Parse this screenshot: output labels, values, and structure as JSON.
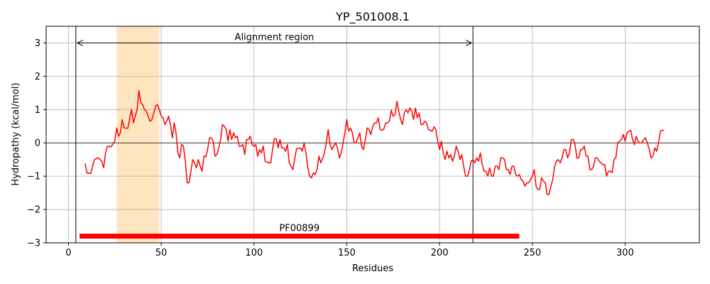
{
  "chart_data": {
    "type": "line",
    "title": "YP_501008.1",
    "xlabel": "Residues",
    "ylabel": "Hydropathy (kcal/mol)",
    "xlim": [
      -12,
      340
    ],
    "ylim": [
      -3,
      3.5
    ],
    "xticks": [
      0,
      50,
      100,
      150,
      200,
      250,
      300
    ],
    "yticks": [
      -3,
      -2,
      -1,
      0,
      1,
      2,
      3
    ],
    "grid": true,
    "series": [
      {
        "color": "#ff0000",
        "points": [
          [
            9,
            -0.62
          ],
          [
            10,
            -0.9
          ],
          [
            12,
            -0.92
          ],
          [
            14,
            -0.5
          ],
          [
            16,
            -0.45
          ],
          [
            18,
            -0.55
          ],
          [
            19,
            -0.75
          ],
          [
            20,
            -0.3
          ],
          [
            21,
            -0.1
          ],
          [
            23,
            -0.12
          ],
          [
            25,
            0.05
          ],
          [
            26,
            0.45
          ],
          [
            27,
            0.2
          ],
          [
            28,
            0.3
          ],
          [
            29,
            0.7
          ],
          [
            30,
            0.45
          ],
          [
            32,
            0.44
          ],
          [
            34,
            1.0
          ],
          [
            35,
            0.6
          ],
          [
            36,
            0.8
          ],
          [
            37,
            1.0
          ],
          [
            38,
            1.57
          ],
          [
            39,
            1.2
          ],
          [
            40,
            1.15
          ],
          [
            41,
            1.0
          ],
          [
            42,
            0.95
          ],
          [
            44,
            0.65
          ],
          [
            45,
            0.7
          ],
          [
            46,
            0.9
          ],
          [
            47,
            1.1
          ],
          [
            48,
            1.15
          ],
          [
            49,
            1.0
          ],
          [
            50,
            0.8
          ],
          [
            51,
            0.75
          ],
          [
            52,
            0.55
          ],
          [
            53,
            0.65
          ],
          [
            54,
            0.8
          ],
          [
            55,
            0.55
          ],
          [
            56,
            0.15
          ],
          [
            57,
            0.6
          ],
          [
            58,
            0.3
          ],
          [
            59,
            -0.3
          ],
          [
            60,
            -0.45
          ],
          [
            61,
            -0.05
          ],
          [
            62,
            -0.1
          ],
          [
            63,
            -0.55
          ],
          [
            64,
            -1.2
          ],
          [
            65,
            -1.2
          ],
          [
            67,
            -0.5
          ],
          [
            68,
            -0.6
          ],
          [
            69,
            -0.75
          ],
          [
            70,
            -0.5
          ],
          [
            71,
            -0.7
          ],
          [
            72,
            -0.85
          ],
          [
            73,
            -0.4
          ],
          [
            74,
            -0.42
          ],
          [
            75,
            -0.2
          ],
          [
            76,
            0.15
          ],
          [
            77,
            0.15
          ],
          [
            78,
            0.05
          ],
          [
            79,
            -0.4
          ],
          [
            80,
            -0.35
          ],
          [
            81,
            -0.15
          ],
          [
            82,
            0.1
          ],
          [
            83,
            0.55
          ],
          [
            84,
            0.5
          ],
          [
            85,
            0.4
          ],
          [
            86,
            0.05
          ],
          [
            87,
            0.4
          ],
          [
            88,
            0.1
          ],
          [
            89,
            0.3
          ],
          [
            90,
            0.15
          ],
          [
            91,
            0.2
          ],
          [
            92,
            -0.1
          ],
          [
            93,
            -0.1
          ],
          [
            94,
            -0.05
          ],
          [
            95,
            -0.35
          ],
          [
            96,
            0.1
          ],
          [
            97,
            0.1
          ],
          [
            98,
            0.2
          ],
          [
            99,
            -0.05
          ],
          [
            100,
            -0.1
          ],
          [
            101,
            -0.05
          ],
          [
            102,
            -0.4
          ],
          [
            103,
            -0.2
          ],
          [
            104,
            -0.3
          ],
          [
            105,
            -0.1
          ],
          [
            106,
            -0.55
          ],
          [
            107,
            -0.58
          ],
          [
            109,
            -0.6
          ],
          [
            110,
            -0.2
          ],
          [
            111,
            0.13
          ],
          [
            112,
            0.12
          ],
          [
            113,
            -0.15
          ],
          [
            114,
            0.1
          ],
          [
            115,
            -0.15
          ],
          [
            116,
            -0.15
          ],
          [
            117,
            -0.25
          ],
          [
            118,
            -0.05
          ],
          [
            119,
            -0.6
          ],
          [
            120,
            -0.7
          ],
          [
            121,
            -0.8
          ],
          [
            122,
            -0.45
          ],
          [
            123,
            -0.17
          ],
          [
            124,
            -0.17
          ],
          [
            125,
            -0.15
          ],
          [
            126,
            -0.25
          ],
          [
            127,
            0.0
          ],
          [
            128,
            -0.3
          ],
          [
            129,
            -0.75
          ],
          [
            130,
            -1.0
          ],
          [
            131,
            -1.05
          ],
          [
            132,
            -0.9
          ],
          [
            133,
            -0.95
          ],
          [
            134,
            -0.8
          ],
          [
            135,
            -0.4
          ],
          [
            136,
            -0.6
          ],
          [
            137,
            -0.45
          ],
          [
            138,
            -0.3
          ],
          [
            139,
            0.0
          ],
          [
            140,
            0.4
          ],
          [
            141,
            -0.05
          ],
          [
            142,
            -0.2
          ],
          [
            143,
            -0.1
          ],
          [
            144,
            0.0
          ],
          [
            145,
            -0.15
          ],
          [
            146,
            -0.45
          ],
          [
            147,
            -0.3
          ],
          [
            148,
            0.0
          ],
          [
            149,
            0.3
          ],
          [
            150,
            0.7
          ],
          [
            151,
            0.35
          ],
          [
            152,
            0.45
          ],
          [
            153,
            0.3
          ],
          [
            154,
            0.0
          ],
          [
            155,
            0.0
          ],
          [
            156,
            0.15
          ],
          [
            157,
            0.3
          ],
          [
            158,
            -0.1
          ],
          [
            159,
            -0.2
          ],
          [
            160,
            0.1
          ],
          [
            161,
            0.45
          ],
          [
            162,
            0.4
          ],
          [
            163,
            0.25
          ],
          [
            164,
            0.5
          ],
          [
            165,
            0.6
          ],
          [
            166,
            0.6
          ],
          [
            167,
            0.75
          ],
          [
            168,
            0.4
          ],
          [
            169,
            0.38
          ],
          [
            170,
            0.42
          ],
          [
            171,
            0.6
          ],
          [
            172,
            0.6
          ],
          [
            173,
            0.65
          ],
          [
            174,
            0.98
          ],
          [
            175,
            0.8
          ],
          [
            176,
            0.85
          ],
          [
            177,
            1.25
          ],
          [
            178,
            0.95
          ],
          [
            179,
            0.7
          ],
          [
            180,
            0.55
          ],
          [
            181,
            0.9
          ],
          [
            182,
            1.0
          ],
          [
            183,
            0.9
          ],
          [
            184,
            1.05
          ],
          [
            185,
            0.95
          ],
          [
            186,
            0.7
          ],
          [
            187,
            1.05
          ],
          [
            188,
            0.75
          ],
          [
            189,
            0.9
          ],
          [
            190,
            0.55
          ],
          [
            191,
            0.55
          ],
          [
            192,
            0.65
          ],
          [
            193,
            0.6
          ],
          [
            194,
            0.4
          ],
          [
            195,
            0.38
          ],
          [
            196,
            0.35
          ],
          [
            197,
            0.48
          ],
          [
            198,
            0.4
          ],
          [
            199,
            0.05
          ],
          [
            200,
            -0.2
          ],
          [
            201,
            0.05
          ],
          [
            202,
            -0.3
          ],
          [
            203,
            -0.5
          ],
          [
            204,
            -0.25
          ],
          [
            205,
            -0.45
          ],
          [
            206,
            -0.35
          ],
          [
            207,
            -0.55
          ],
          [
            208,
            -0.4
          ],
          [
            209,
            -0.1
          ],
          [
            210,
            -0.25
          ],
          [
            211,
            -0.5
          ],
          [
            212,
            -0.35
          ],
          [
            213,
            -0.7
          ],
          [
            214,
            -1.0
          ],
          [
            215,
            -1.0
          ],
          [
            216,
            -0.85
          ],
          [
            217,
            -0.55
          ],
          [
            218,
            -0.5
          ],
          [
            219,
            -0.6
          ],
          [
            220,
            -0.45
          ],
          [
            221,
            -0.55
          ],
          [
            222,
            -0.3
          ],
          [
            223,
            -0.65
          ],
          [
            224,
            -0.85
          ],
          [
            225,
            -0.85
          ],
          [
            226,
            -1.0
          ],
          [
            227,
            -0.75
          ],
          [
            228,
            -1.0
          ],
          [
            229,
            -1.0
          ],
          [
            230,
            -0.7
          ],
          [
            231,
            -0.7
          ],
          [
            232,
            -0.8
          ],
          [
            233,
            -0.45
          ],
          [
            234,
            -0.45
          ],
          [
            235,
            -0.5
          ],
          [
            236,
            -0.8
          ],
          [
            237,
            -0.8
          ],
          [
            238,
            -0.95
          ],
          [
            239,
            -0.7
          ],
          [
            240,
            -0.7
          ],
          [
            241,
            -0.95
          ],
          [
            242,
            -1.0
          ],
          [
            243,
            -0.95
          ],
          [
            244,
            -1.1
          ],
          [
            245,
            -1.15
          ],
          [
            246,
            -1.3
          ],
          [
            247,
            -1.2
          ],
          [
            248,
            -1.2
          ],
          [
            249,
            -1.1
          ],
          [
            250,
            -1.0
          ],
          [
            251,
            -0.8
          ],
          [
            252,
            -1.3
          ],
          [
            253,
            -1.4
          ],
          [
            254,
            -1.4
          ],
          [
            255,
            -1.05
          ],
          [
            256,
            -1.15
          ],
          [
            257,
            -1.2
          ],
          [
            258,
            -1.55
          ],
          [
            259,
            -1.55
          ],
          [
            260,
            -1.3
          ],
          [
            261,
            -1.1
          ],
          [
            262,
            -0.7
          ],
          [
            263,
            -0.55
          ],
          [
            264,
            -0.5
          ],
          [
            265,
            -0.6
          ],
          [
            266,
            -0.45
          ],
          [
            267,
            -0.2
          ],
          [
            268,
            -0.2
          ],
          [
            269,
            -0.45
          ],
          [
            270,
            -0.3
          ],
          [
            271,
            0.1
          ],
          [
            272,
            0.1
          ],
          [
            273,
            -0.05
          ],
          [
            274,
            -0.45
          ],
          [
            275,
            -0.45
          ],
          [
            276,
            -0.2
          ],
          [
            277,
            -0.2
          ],
          [
            278,
            -0.1
          ],
          [
            279,
            -0.4
          ],
          [
            280,
            -0.4
          ],
          [
            281,
            -0.8
          ],
          [
            282,
            -0.8
          ],
          [
            283,
            -0.7
          ],
          [
            284,
            -0.45
          ],
          [
            285,
            -0.45
          ],
          [
            286,
            -0.55
          ],
          [
            287,
            -0.6
          ],
          [
            288,
            -0.65
          ],
          [
            289,
            -0.65
          ],
          [
            290,
            -1.0
          ],
          [
            291,
            -0.85
          ],
          [
            292,
            -0.85
          ],
          [
            293,
            -0.9
          ],
          [
            294,
            -0.5
          ],
          [
            295,
            -0.45
          ],
          [
            296,
            0.0
          ],
          [
            297,
            0.05
          ],
          [
            298,
            0.1
          ],
          [
            299,
            0.25
          ],
          [
            300,
            0.05
          ],
          [
            301,
            0.3
          ],
          [
            302,
            0.35
          ],
          [
            303,
            0.38
          ],
          [
            304,
            0.1
          ],
          [
            305,
            -0.05
          ],
          [
            306,
            0.2
          ],
          [
            307,
            0.05
          ],
          [
            308,
            0.0
          ],
          [
            309,
            0.0
          ],
          [
            310,
            0.1
          ],
          [
            311,
            0.15
          ],
          [
            312,
            0.0
          ],
          [
            313,
            -0.2
          ],
          [
            314,
            -0.45
          ],
          [
            315,
            -0.4
          ],
          [
            316,
            -0.15
          ],
          [
            317,
            -0.25
          ],
          [
            318,
            0.0
          ],
          [
            319,
            0.35
          ],
          [
            320,
            0.38
          ],
          [
            321,
            0.37
          ]
        ]
      }
    ],
    "shaded_region": {
      "x_start": 26,
      "x_end": 49,
      "color": "#ffe5bf"
    },
    "vertical_lines": [
      4,
      218
    ],
    "annotations": [
      {
        "text": "Alignment region",
        "x_start": 4,
        "x_end": 218,
        "y": 3,
        "arrow": "double"
      }
    ],
    "domains": [
      {
        "label": "PF00899",
        "x_start": 6,
        "x_end": 243,
        "y": -2.8,
        "color": "#ff0000"
      }
    ]
  }
}
